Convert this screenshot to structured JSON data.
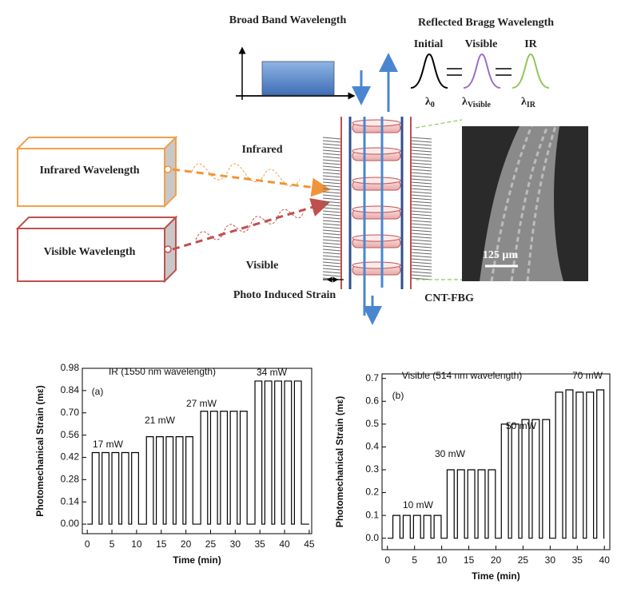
{
  "diagram": {
    "broad_band": "Broad Band Wavelength",
    "reflected": "Reflected Bragg Wavelength",
    "peaks": [
      "Initial",
      "Visible",
      "IR"
    ],
    "lambdas": [
      {
        "symbol": "λ",
        "sub": "0"
      },
      {
        "symbol": "λ",
        "sub": "Visible"
      },
      {
        "symbol": "λ",
        "sub": "IR"
      }
    ],
    "infrared_beam": "Infrared",
    "visible_beam": "Visible",
    "infrared_source": "Infrared Wavelength",
    "visible_source": "Visible Wavelength",
    "strain": "Photo Induced Strain",
    "sensor": "CNT-FBG",
    "scale_bar": "125 µm"
  },
  "chart_data": [
    {
      "type": "line",
      "color": "#000000",
      "ylabel": "Photomechanical Strain (mε)",
      "xlabel": "Time (min)",
      "annotations": [
        "IR (1550 nm wavelength)",
        "(a)",
        "17 mW",
        "21 mW",
        "27 mW",
        "34 mW"
      ],
      "xlim": [
        -1,
        45.5
      ],
      "ylim": [
        -0.06,
        0.98
      ],
      "xticks": [
        0,
        5,
        10,
        15,
        20,
        25,
        30,
        35,
        40,
        45
      ],
      "yticks": [
        {
          "value": 0,
          "label": "0.00"
        },
        0.14,
        0.28,
        0.42,
        0.56,
        {
          "value": 0.7,
          "label": "0.70"
        },
        0.84,
        0.98
      ],
      "x": [
        0,
        1,
        1,
        2.4,
        2.4,
        3,
        3,
        4.4,
        4.4,
        5,
        5,
        6.4,
        6.4,
        7,
        7,
        8.4,
        8.4,
        9,
        9,
        10.4,
        10.4,
        12,
        12,
        13.4,
        13.4,
        14,
        14,
        15.4,
        15.4,
        16,
        16,
        17.4,
        17.4,
        18,
        18,
        19.4,
        19.4,
        20,
        20,
        21.4,
        21.4,
        23,
        23,
        24.4,
        24.4,
        25,
        25,
        26.4,
        26.4,
        27,
        27,
        28.4,
        28.4,
        29,
        29,
        30.4,
        30.4,
        31,
        31,
        32.4,
        32.4,
        34,
        34,
        35.4,
        35.4,
        36,
        36,
        37.4,
        37.4,
        38,
        38,
        39.4,
        39.4,
        40,
        40,
        41.4,
        41.4,
        42,
        42,
        43.4,
        43.4,
        45
      ],
      "values": [
        0,
        0,
        0.45,
        0.45,
        0,
        0,
        0.45,
        0.45,
        0,
        0,
        0.45,
        0.45,
        0,
        0,
        0.45,
        0.45,
        0,
        0,
        0.45,
        0.45,
        0,
        0,
        0.55,
        0.55,
        0,
        0,
        0.55,
        0.55,
        0,
        0,
        0.55,
        0.55,
        0,
        0,
        0.55,
        0.55,
        0,
        0,
        0.55,
        0.55,
        0,
        0,
        0.71,
        0.71,
        0,
        0,
        0.71,
        0.71,
        0,
        0,
        0.71,
        0.71,
        0,
        0,
        0.71,
        0.71,
        0,
        0,
        0.71,
        0.71,
        0,
        0,
        0.9,
        0.9,
        0,
        0,
        0.9,
        0.9,
        0,
        0,
        0.9,
        0.9,
        0,
        0,
        0.9,
        0.9,
        0,
        0,
        0.9,
        0.9,
        0,
        0
      ]
    },
    {
      "type": "line",
      "color": "#000000",
      "ylabel": "Photomechanical Strain (mε)",
      "xlabel": "Time (min)",
      "annotations": [
        "Visible (514 nm wavelength)",
        "(b)",
        "10 mW",
        "30 mW",
        "50 mW",
        "70 mW"
      ],
      "xlim": [
        -1,
        41
      ],
      "ylim": [
        -0.05,
        0.72
      ],
      "xticks": [
        0,
        5,
        10,
        15,
        20,
        25,
        30,
        35,
        40
      ],
      "yticks": [
        {
          "value": 0,
          "label": "0.0"
        },
        0.1,
        0.2,
        0.3,
        0.4,
        0.5,
        0.6,
        0.7
      ],
      "x": [
        0,
        1,
        1,
        2.3,
        2.3,
        2.9,
        2.9,
        4.2,
        4.2,
        4.8,
        4.8,
        6.1,
        6.1,
        6.7,
        6.7,
        8,
        8,
        8.6,
        8.6,
        9.9,
        9.9,
        11,
        11,
        12.3,
        12.3,
        12.9,
        12.9,
        14.2,
        14.2,
        14.8,
        14.8,
        16.1,
        16.1,
        16.7,
        16.7,
        18,
        18,
        18.6,
        18.6,
        19.9,
        19.9,
        21,
        21,
        22.3,
        22.3,
        22.9,
        22.9,
        24.2,
        24.2,
        24.8,
        24.8,
        26.1,
        26.1,
        26.7,
        26.7,
        28,
        28,
        28.6,
        28.6,
        29.9,
        29.9,
        31,
        31,
        32.3,
        32.3,
        32.9,
        32.9,
        34.2,
        34.2,
        34.8,
        34.8,
        36.1,
        36.1,
        36.7,
        36.7,
        38,
        38,
        38.6,
        38.6,
        39.9,
        39.9,
        40
      ],
      "values": [
        0,
        0,
        0.1,
        0.1,
        0,
        0,
        0.1,
        0.1,
        0,
        0,
        0.1,
        0.1,
        0,
        0,
        0.1,
        0.1,
        0,
        0,
        0.1,
        0.1,
        0,
        0,
        0.3,
        0.3,
        0,
        0,
        0.3,
        0.3,
        0,
        0,
        0.3,
        0.3,
        0,
        0,
        0.3,
        0.3,
        0,
        0,
        0.3,
        0.3,
        0,
        0,
        0.5,
        0.5,
        0,
        0,
        0.5,
        0.5,
        0,
        0,
        0.52,
        0.52,
        0,
        0,
        0.52,
        0.52,
        0,
        0,
        0.52,
        0.52,
        0,
        0,
        0.64,
        0.64,
        0,
        0,
        0.65,
        0.65,
        0,
        0,
        0.64,
        0.64,
        0,
        0,
        0.64,
        0.64,
        0,
        0,
        0.65,
        0.65,
        0,
        0
      ]
    }
  ]
}
